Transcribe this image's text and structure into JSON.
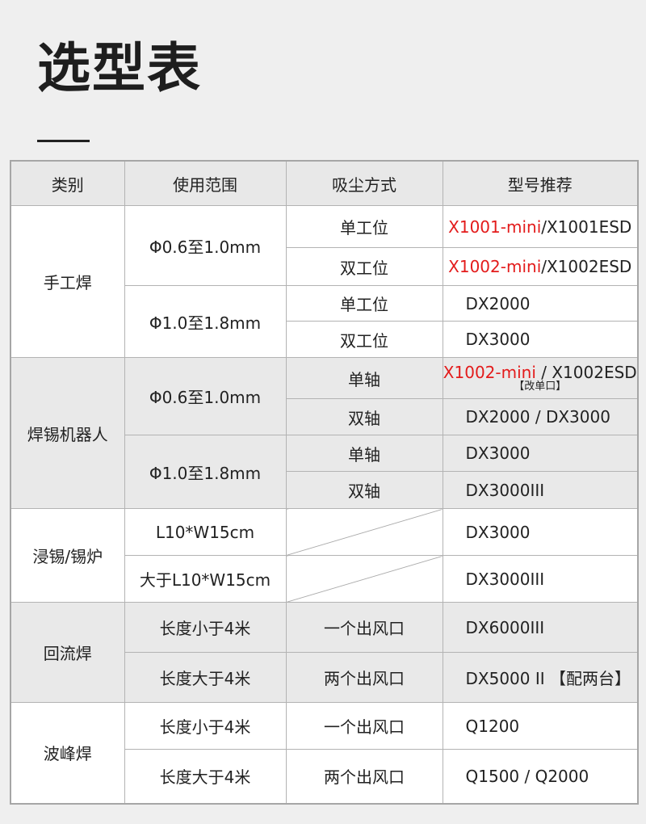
{
  "title": "选型表",
  "colors": {
    "accent_red": "#e31b1b",
    "header_bg": "#e8e8e8",
    "row_gray": "#e9e9e9"
  },
  "headers": [
    "类别",
    "使用范围",
    "吸尘方式",
    "型号推荐"
  ],
  "groups": [
    {
      "category": "手工焊",
      "shade": "white",
      "ranges": [
        {
          "range": "Φ0.6至1.0mm",
          "rows": [
            {
              "method": "单工位",
              "h": 52,
              "model": [
                {
                  "text": "X1001-mini",
                  "red": true
                },
                {
                  "text": "/X1001ESD"
                }
              ]
            },
            {
              "method": "双工位",
              "h": 47,
              "model": [
                {
                  "text": "X1002-mini",
                  "red": true
                },
                {
                  "text": "/X1002ESD"
                }
              ]
            }
          ]
        },
        {
          "range": "Φ1.0至1.8mm",
          "rows": [
            {
              "method": "单工位",
              "h": 44,
              "model": [
                {
                  "text": "DX2000"
                }
              ]
            },
            {
              "method": "双工位",
              "h": 45,
              "model": [
                {
                  "text": "DX3000"
                }
              ]
            }
          ]
        }
      ]
    },
    {
      "category": "焊锡机器人",
      "shade": "gray",
      "ranges": [
        {
          "range": "Φ0.6至1.0mm",
          "rows": [
            {
              "method": "单轴",
              "h": 51,
              "model": [
                {
                  "text": "X1002-mini",
                  "red": true
                },
                {
                  "text": " / X1002ESD"
                }
              ],
              "note": "【改单口】"
            },
            {
              "method": "双轴",
              "h": 45,
              "model": [
                {
                  "text": "DX2000 / DX3000"
                }
              ]
            }
          ]
        },
        {
          "range": "Φ1.0至1.8mm",
          "rows": [
            {
              "method": "单轴",
              "h": 45,
              "model": [
                {
                  "text": "DX3000"
                }
              ]
            },
            {
              "method": "双轴",
              "h": 46,
              "model": [
                {
                  "text": "DX3000III"
                }
              ]
            }
          ]
        }
      ]
    },
    {
      "category": "浸锡/锡炉",
      "shade": "white",
      "ranges": [
        {
          "range": "L10*W15cm",
          "rows": [
            {
              "method": "",
              "diagonal": true,
              "h": 58,
              "model": [
                {
                  "text": "DX3000"
                }
              ]
            }
          ]
        },
        {
          "range": "大于L10*W15cm",
          "rows": [
            {
              "method": "",
              "diagonal": true,
              "h": 58,
              "model": [
                {
                  "text": "DX3000III"
                }
              ]
            }
          ]
        }
      ]
    },
    {
      "category": "回流焊",
      "shade": "gray",
      "ranges": [
        {
          "range": "长度小于4米",
          "rows": [
            {
              "method": "一个出风口",
              "h": 62,
              "model": [
                {
                  "text": "DX6000III"
                }
              ]
            }
          ]
        },
        {
          "range": "长度大于4米",
          "rows": [
            {
              "method": "两个出风口",
              "h": 62,
              "model": [
                {
                  "text": "DX5000 II 【配两台】"
                }
              ]
            }
          ]
        }
      ]
    },
    {
      "category": "波峰焊",
      "shade": "white",
      "ranges": [
        {
          "range": "长度小于4米",
          "rows": [
            {
              "method": "一个出风口",
              "h": 58,
              "model": [
                {
                  "text": "Q1200"
                }
              ]
            }
          ]
        },
        {
          "range": "长度大于4米",
          "rows": [
            {
              "method": "两个出风口",
              "h": 67,
              "model": [
                {
                  "text": "Q1500 / Q2000"
                }
              ]
            }
          ]
        }
      ]
    }
  ]
}
